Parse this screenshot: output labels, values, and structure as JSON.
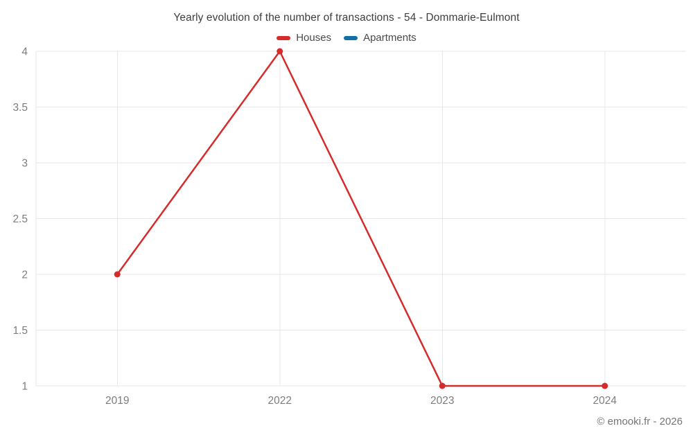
{
  "page": {
    "title": "Yearly evolution of the number of transactions - 54 - Dommarie-Eulmont",
    "footer_credit": "© emooki.fr - 2026"
  },
  "legend": {
    "items": [
      {
        "label": "Houses",
        "color": "#d62b2b"
      },
      {
        "label": "Apartments",
        "color": "#1170a5"
      }
    ]
  },
  "chart_data": {
    "type": "line",
    "title": "Yearly evolution of the number of transactions - 54 - Dommarie-Eulmont",
    "categories": [
      "2019",
      "2022",
      "2023",
      "2024"
    ],
    "series": [
      {
        "name": "Houses",
        "color": "#d62b2b",
        "values": [
          2,
          4,
          1,
          1
        ]
      },
      {
        "name": "Apartments",
        "color": "#1170a5",
        "values": []
      }
    ],
    "xlabel": "",
    "ylabel": "",
    "ylim": [
      1,
      4
    ],
    "yticks": [
      1,
      1.5,
      2,
      2.5,
      3,
      3.5,
      4
    ],
    "grid": true,
    "legend_position": "top",
    "marker": "circle"
  }
}
